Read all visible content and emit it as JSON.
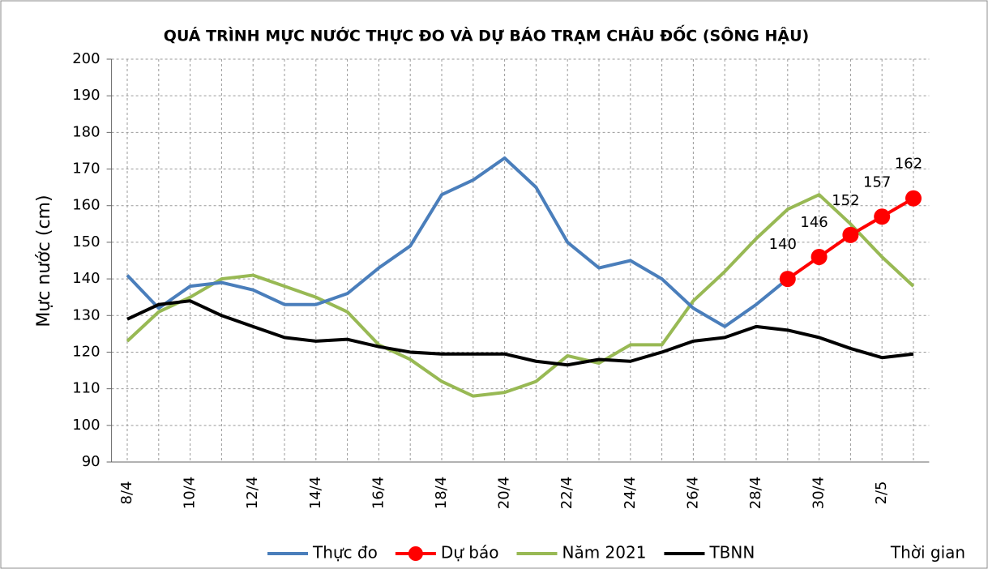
{
  "chart_data": {
    "type": "line",
    "title": "QUÁ TRÌNH MỰC NƯỚC THỰC ĐO VÀ DỰ BÁO TRẠM CHÂU ĐỐC (SÔNG HẬU)",
    "y_label": "Mực nước (cm)",
    "x_label": "Thời gian",
    "categories": [
      "8/4",
      null,
      "10/4",
      null,
      "12/4",
      null,
      "14/4",
      null,
      "16/4",
      null,
      "18/4",
      null,
      "20/4",
      null,
      "22/4",
      null,
      "24/4",
      null,
      "26/4",
      null,
      "28/4",
      null,
      "30/4",
      null,
      "2/5",
      null
    ],
    "ylim": [
      90,
      200
    ],
    "yticks": [
      90,
      100,
      110,
      120,
      130,
      140,
      150,
      160,
      170,
      180,
      190,
      200
    ],
    "grid": true,
    "legend": "bottom",
    "series": [
      {
        "name": "Thực đo",
        "color": "#4a7ebb",
        "values": [
          141,
          132,
          138,
          139,
          137,
          133,
          133,
          136,
          143,
          149,
          163,
          167,
          173,
          165,
          150,
          143,
          145,
          140,
          132,
          127,
          133,
          140,
          null,
          null,
          null,
          null
        ]
      },
      {
        "name": "Dự báo",
        "color": "#ff0000",
        "markers": true,
        "data_labels": true,
        "values": [
          null,
          null,
          null,
          null,
          null,
          null,
          null,
          null,
          null,
          null,
          null,
          null,
          null,
          null,
          null,
          null,
          null,
          null,
          null,
          null,
          null,
          140,
          146,
          152,
          157,
          162
        ]
      },
      {
        "name": "Năm 2021",
        "color": "#98b954",
        "values": [
          123,
          131,
          135,
          140,
          141,
          138,
          135,
          131,
          122,
          118,
          112,
          108,
          109,
          112,
          119,
          117,
          122,
          122,
          134,
          142,
          151,
          159,
          163,
          155,
          146,
          138
        ]
      },
      {
        "name": "TBNN",
        "color": "#000000",
        "values": [
          129,
          133,
          134,
          130,
          127,
          124,
          123,
          123.5,
          121.5,
          120,
          119.5,
          119.5,
          119.5,
          117.5,
          116.5,
          118,
          117.5,
          120,
          123,
          124,
          127,
          126,
          124,
          121,
          118.5,
          119.5
        ]
      }
    ]
  }
}
